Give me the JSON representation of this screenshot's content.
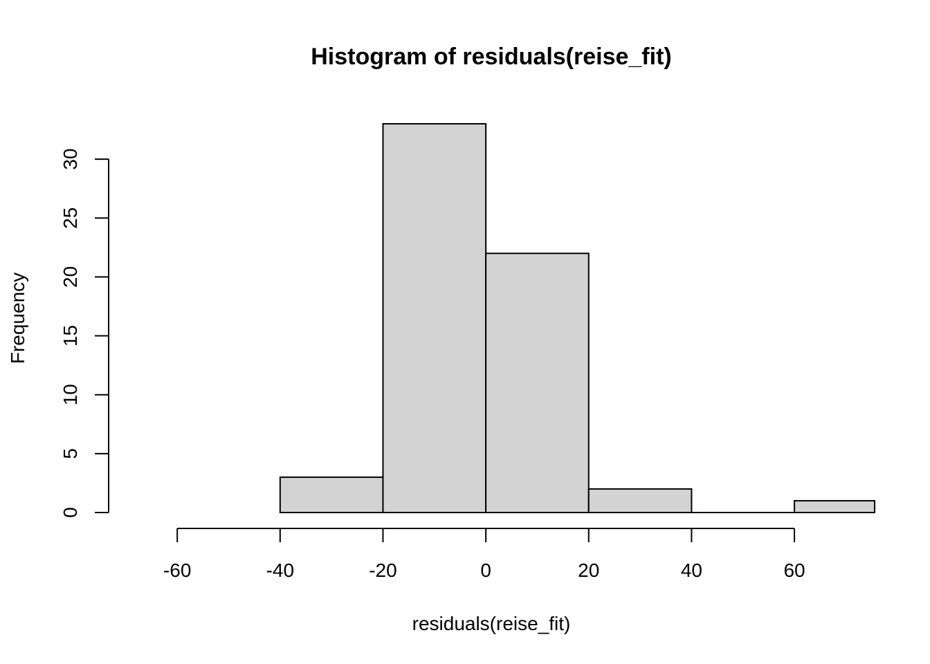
{
  "chart_data": {
    "type": "bar",
    "title": "Histogram of residuals(reise_fit)",
    "xlabel": "residuals(reise_fit)",
    "ylabel": "Frequency",
    "bins": [
      {
        "start": -40,
        "end": -20,
        "count": 3
      },
      {
        "start": -20,
        "end": 0,
        "count": 33
      },
      {
        "start": 0,
        "end": 20,
        "count": 22
      },
      {
        "start": 20,
        "end": 40,
        "count": 2
      },
      {
        "start": 40,
        "end": 60,
        "count": 0
      },
      {
        "start": 60,
        "end": 80,
        "count": 1
      }
    ],
    "xticks": [
      -60,
      -40,
      -20,
      0,
      20,
      40,
      60
    ],
    "xtick_labels": [
      "-60",
      "-40",
      "-20",
      "0",
      "20",
      "40",
      "60"
    ],
    "yticks": [
      0,
      5,
      10,
      15,
      20,
      25,
      30
    ],
    "ytick_labels": [
      "0",
      "5",
      "10",
      "15",
      "20",
      "25",
      "30"
    ],
    "xlim": [
      -60,
      80
    ],
    "ylim": [
      0,
      33
    ],
    "bar_color": "#D3D3D3",
    "grid": false
  }
}
